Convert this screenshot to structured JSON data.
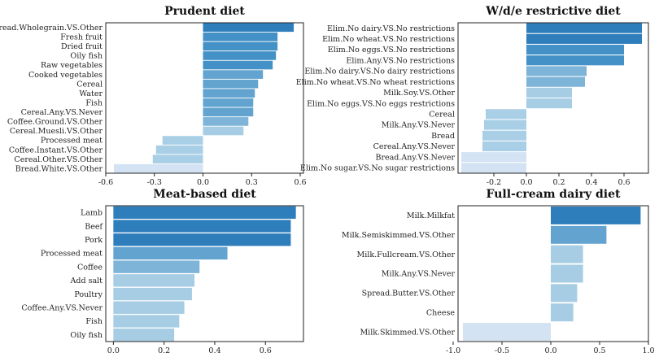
{
  "chart_data": [
    {
      "type": "bar",
      "orientation": "horizontal",
      "title": "Prudent diet",
      "categories": [
        "Bread.Wholegrain.VS.Other",
        "Fresh fruit",
        "Dried fruit",
        "Oily fish",
        "Raw vegetables",
        "Cooked vegetables",
        "Cereal",
        "Water",
        "Fish",
        "Cereal.Any.VS.Never",
        "Coffee.Ground.VS.Other",
        "Cereal.Muesli.VS.Other",
        "Processed meat",
        "Coffee.Instant.VS.Other",
        "Cereal.Other.VS.Other",
        "Bread.White.VS.Other"
      ],
      "values": [
        0.56,
        0.46,
        0.46,
        0.45,
        0.43,
        0.37,
        0.34,
        0.32,
        0.31,
        0.31,
        0.28,
        0.25,
        -0.25,
        -0.29,
        -0.31,
        -0.55
      ],
      "xlim": [
        -0.6,
        0.62
      ],
      "xticks": [
        -0.6,
        -0.3,
        0.0,
        0.3,
        0.6
      ],
      "xtick_labels": [
        "-0.6",
        "-0.3",
        "0.0",
        "0.3",
        "0.6"
      ],
      "xlabel": "",
      "ylabel": "",
      "grid": false
    },
    {
      "type": "bar",
      "orientation": "horizontal",
      "title": "W/d/e restrictive diet",
      "categories": [
        "Elim.No dairy.VS.No restrictions",
        "Elim.No wheat.VS.No restrictions",
        "Elim.No eggs.VS.No restrictions",
        "Elim.Any.VS.No restrictions",
        "Elim.No dairy.VS.No dairy restrictions",
        "Elim.No wheat.VS.No wheat restrictions",
        "Milk.Soy.VS.Other",
        "Elim.No eggs.VS.No eggs restrictions",
        "Cereal",
        "Milk.Any.VS.Never",
        "Bread",
        "Cereal.Any.VS.Never",
        "Bread.Any.VS.Never",
        "Elim.No sugar.VS.No sugar restrictions"
      ],
      "values": [
        0.71,
        0.71,
        0.6,
        0.6,
        0.37,
        0.36,
        0.28,
        0.28,
        -0.25,
        -0.26,
        -0.27,
        -0.27,
        -0.4,
        -0.4
      ],
      "xlim": [
        -0.42,
        0.75
      ],
      "xticks": [
        -0.2,
        0.0,
        0.2,
        0.4,
        0.6
      ],
      "xtick_labels": [
        "-0.2",
        "0.0",
        "0.2",
        "0.4",
        "0.6"
      ],
      "xlabel": "",
      "ylabel": "",
      "grid": false
    },
    {
      "type": "bar",
      "orientation": "horizontal",
      "title": "Meat-based diet",
      "categories": [
        "Lamb",
        "Beef",
        "Pork",
        "Processed meat",
        "Coffee",
        "Add salt",
        "Poultry",
        "Coffee.Any.VS.Never",
        "Fish",
        "Oily fish"
      ],
      "values": [
        0.72,
        0.7,
        0.7,
        0.45,
        0.34,
        0.32,
        0.31,
        0.28,
        0.26,
        0.24
      ],
      "xlim": [
        -0.03,
        0.75
      ],
      "xticks": [
        0.0,
        0.2,
        0.4,
        0.6
      ],
      "xtick_labels": [
        "0.0",
        "0.2",
        "0.4",
        "0.6"
      ],
      "xlabel": "",
      "ylabel": "",
      "grid": false
    },
    {
      "type": "bar",
      "orientation": "horizontal",
      "title": "Full-cream dairy diet",
      "categories": [
        "Milk.Milkfat",
        "Milk.Semiskimmed.VS.Other",
        "Milk.Fullcream.VS.Other",
        "Milk.Any.VS.Never",
        "Spread.Butter.VS.Other",
        "Cheese",
        "Milk.Skimmed.VS.Other"
      ],
      "values": [
        0.92,
        0.57,
        0.33,
        0.33,
        0.27,
        0.23,
        -0.9
      ],
      "xlim": [
        -0.95,
        1.0
      ],
      "xticks": [
        -1.0,
        -0.5,
        0.0,
        0.5,
        1.0
      ],
      "xtick_labels": [
        "-1.0",
        "-0.5",
        "0.0",
        "0.5",
        "1.0"
      ],
      "xlabel": "",
      "ylabel": "",
      "grid": false
    }
  ],
  "colors": {
    "positive_dark": "#2f7ebc",
    "positive_mid": "#62a3cf",
    "positive_light": "#a6cde3",
    "negative_light": "#a9cfe6",
    "negative_pale": "#d3e3f3",
    "axis": "#222222"
  }
}
